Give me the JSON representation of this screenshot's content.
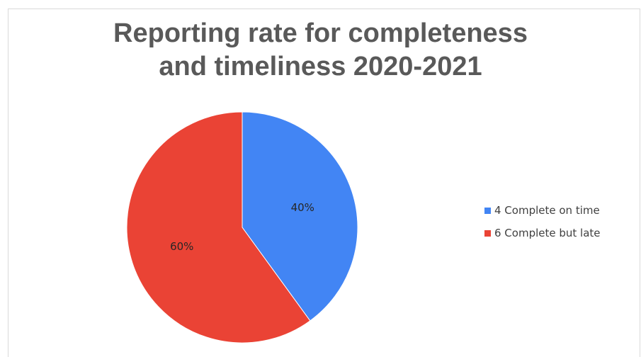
{
  "chart_data": {
    "type": "pie",
    "title": "Reporting rate for completeness and timeliness 2020-2021",
    "title_lines": [
      "Reporting rate for completeness",
      "and timeliness 2020-2021"
    ],
    "categories": [
      "4 Complete on time",
      "6 Complete but late"
    ],
    "values": [
      40,
      60
    ],
    "data_labels": [
      "40%",
      "60%"
    ],
    "colors": [
      "#4285f4",
      "#ea4335"
    ],
    "legend_position": "right"
  }
}
